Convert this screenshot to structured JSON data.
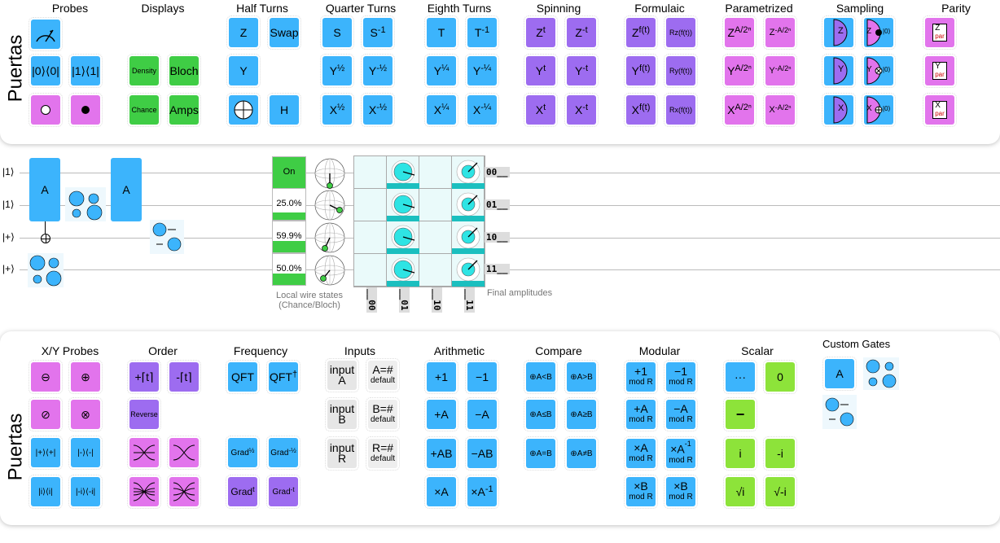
{
  "top_side_title": "Puertas",
  "bottom_side_title": "Puertas",
  "top_groups": {
    "probes": "Probes",
    "displays": "Displays",
    "half": "Half Turns",
    "quarter": "Quarter Turns",
    "eighth": "Eighth Turns",
    "spinning": "Spinning",
    "formulaic": "Formulaic",
    "param": "Parametrized",
    "sampling": "Sampling",
    "parity": "Parity"
  },
  "gates_top": {
    "p_z0": "|0⟩⟨0|",
    "p_z1": "|1⟩⟨1|",
    "d_density": "Density",
    "d_bloch": "Bloch",
    "d_chance": "Chance",
    "d_amps": "Amps",
    "h_z": "Z",
    "h_swap": "Swap",
    "h_y": "Y",
    "h_h": "H",
    "q_s": "S",
    "q_sinv": "S",
    "q_y": "Y",
    "q_yinv": "Y",
    "q_x": "X",
    "q_xinv": "X",
    "e_t": "T",
    "e_tinv": "T",
    "e_y": "Y",
    "e_yinv": "Y",
    "e_x": "X",
    "e_xinv": "X",
    "s_z": "Z",
    "s_zinv": "Z",
    "s_y": "Y",
    "s_yinv": "Y",
    "s_x": "X",
    "s_xinv": "X",
    "f_z": "Z",
    "f_rz": "Rz(f(t))",
    "f_y": "Y",
    "f_ry": "Ry(f(t))",
    "f_x": "X",
    "f_rx": "Rx(f(t))",
    "pa_z": "Z",
    "pa_zi": "Z",
    "pa_y": "Y",
    "pa_yi": "Y",
    "pa_x": "X",
    "pa_xi": "X",
    "sa_z": "Z",
    "sa_zc": "Z",
    "sa_y": "Y",
    "sa_yc": "Y",
    "sa_x": "X",
    "sa_xc": "X",
    "sa_ket": "|0⟩",
    "par_z": "Z",
    "par_y": "Y",
    "par_x": "X",
    "par_sub": "par"
  },
  "sups": {
    "inv": "-1",
    "half": "½",
    "nhalf": "-½",
    "quart": "¼",
    "nquart": "-¼",
    "t": "t",
    "nt": "-t",
    "ft": "f(t)",
    "pa": "A/2ⁿ",
    "npa": "-A/2ⁿ"
  },
  "circuit": {
    "wires": [
      "|1⟩",
      "|1⟩",
      "|+⟩",
      "|+⟩"
    ],
    "gate_a": "A",
    "chance": [
      "On",
      "25.0%",
      "59.9%",
      "50.0%"
    ],
    "chance_fill": [
      1.0,
      0.25,
      0.599,
      0.5
    ],
    "local_caption_1": "Local wire states",
    "local_caption_2": "(Chance/Bloch)",
    "out_labels": [
      "00__",
      "01__",
      "10__",
      "11__"
    ],
    "col_labels": [
      "__00",
      "__01",
      "__10",
      "__11"
    ],
    "final_caption": "Final amplitudes"
  },
  "bottom_groups": {
    "xy": "X/Y Probes",
    "order": "Order",
    "freq": "Frequency",
    "inputs": "Inputs",
    "arith": "Arithmetic",
    "compare": "Compare",
    "modular": "Modular",
    "scalar": "Scalar",
    "custom": "Custom Gates"
  },
  "gates_bottom": {
    "xy1": "⊖",
    "xy2": "⊕",
    "xy3": "⊘",
    "xy4": "⊗",
    "xy5": "|+⟩⟨+|",
    "xy6": "|-⟩⟨-|",
    "xy7": "|i⟩⟨i|",
    "xy8": "|-i⟩⟨-i|",
    "o1": "+⌈t⌉",
    "o2": "-⌈t⌉",
    "o3": "Reverse",
    "fr1": "QFT",
    "fr2": "QFT",
    "fr_dag": "†",
    "fr3": "Grad",
    "fr4": "Grad",
    "fr5": "Grad",
    "fr6": "Grad",
    "in_a": "input",
    "in_a2": "A",
    "in_b": "input",
    "in_b2": "B",
    "in_r": "input",
    "in_r2": "R",
    "def_a": "A=#",
    "def_b": "B=#",
    "def_r": "R=#",
    "def": "default",
    "ar1": "+1",
    "ar2": "−1",
    "ar3": "+A",
    "ar4": "−A",
    "ar5": "+AB",
    "ar6": "−AB",
    "ar7": "×A",
    "ar8": "×A",
    "c1": "⊕A<B",
    "c2": "⊕A>B",
    "c3": "⊕A≤B",
    "c4": "⊕A≥B",
    "c5": "⊕A=B",
    "c6": "⊕A≠B",
    "m1": "+1",
    "m2": "−1",
    "m3": "+A",
    "m4": "−A",
    "m5": "×A",
    "m6": "×A",
    "m7": "×B",
    "m8": "×B",
    "mod": "mod R",
    "sc1": "···",
    "sc2": "0",
    "sc3": "−",
    "sc4": "i",
    "sc5": "-i",
    "sc6": "√i",
    "sc7": "√-i",
    "cu1": "A"
  },
  "colors": {
    "blue": "#3cb4fc",
    "green": "#3fcd45",
    "pink": "#e274ec",
    "purple": "#9d6cf0",
    "lime": "#8de33a",
    "amp": "#1bbfbf"
  }
}
